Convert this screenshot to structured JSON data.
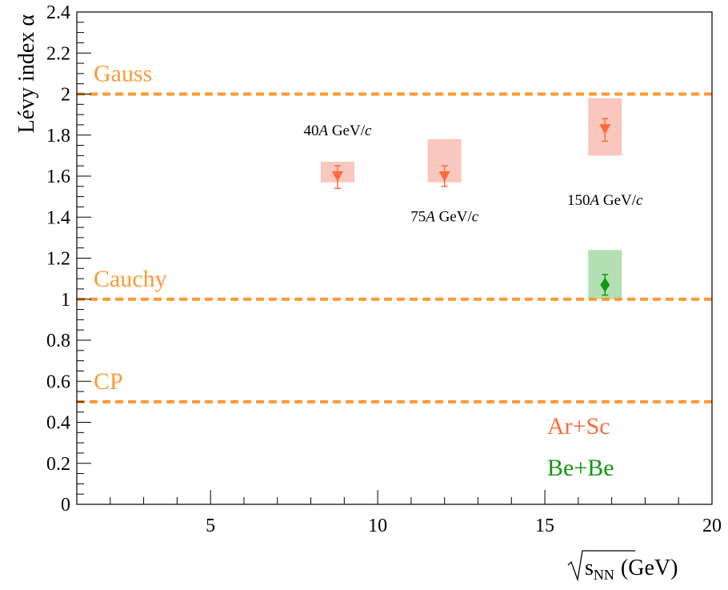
{
  "chart_data": {
    "type": "scatter",
    "ylabel": "Lévy index α",
    "xlabel": "√s_NN (GeV)",
    "xlabel_parts": {
      "root": "s",
      "sub": "NN",
      "unit": "(GeV)"
    },
    "xlim": [
      1,
      20
    ],
    "ylim": [
      0,
      2.4
    ],
    "x_ticks": [
      5,
      10,
      15,
      20
    ],
    "y_ticks": [
      0,
      0.2,
      0.4,
      0.6,
      0.8,
      1,
      1.2,
      1.4,
      1.6,
      1.8,
      2,
      2.2,
      2.4
    ],
    "y_tick_labels": [
      "0",
      "0.2",
      "0.4",
      "0.6",
      "0.8",
      "1",
      "1.2",
      "1.4",
      "1.6",
      "1.8",
      "2",
      "2.2",
      "2.4"
    ],
    "x_tick_labels": [
      "5",
      "10",
      "15",
      "20"
    ],
    "grid": false,
    "reference_lines": [
      {
        "label": "Gauss",
        "y": 2.0
      },
      {
        "label": "Cauchy",
        "y": 1.0
      },
      {
        "label": "CP",
        "y": 0.5
      }
    ],
    "series": [
      {
        "name": "Ar+Sc",
        "marker": "triangle-down",
        "color": "#ff6a3c",
        "sys_color": "#f9c7bd",
        "points": [
          {
            "x": 8.8,
            "y": 1.6,
            "stat": [
              0.06,
              0.05
            ],
            "sys": [
              0.03,
              0.07
            ]
          },
          {
            "x": 12.0,
            "y": 1.6,
            "stat": [
              0.05,
              0.05
            ],
            "sys": [
              0.03,
              0.18
            ]
          },
          {
            "x": 16.8,
            "y": 1.83,
            "stat": [
              0.06,
              0.05
            ],
            "sys": [
              0.13,
              0.15
            ]
          }
        ]
      },
      {
        "name": "Be+Be",
        "marker": "diamond",
        "color": "#149614",
        "sys_color": "#b3e0b3",
        "points": [
          {
            "x": 16.8,
            "y": 1.07,
            "stat": [
              0.05,
              0.05
            ],
            "sys": [
              0.07,
              0.17
            ]
          }
        ]
      }
    ],
    "energy_labels": [
      {
        "num": "40",
        "italic": "A",
        "unit": " GeV/",
        "c": "c",
        "x": 8.8,
        "y": 1.8
      },
      {
        "num": "75",
        "italic": "A",
        "unit": " GeV/",
        "c": "c",
        "x": 12.0,
        "y": 1.38
      },
      {
        "num": "150",
        "italic": "A",
        "unit": " GeV/",
        "c": "c",
        "x": 16.8,
        "y": 1.46
      }
    ],
    "legend_position": "bottom-right",
    "colors": {
      "reference": "#ff9933",
      "ar_sc": "#ff6a3c",
      "be_be": "#149614"
    }
  }
}
